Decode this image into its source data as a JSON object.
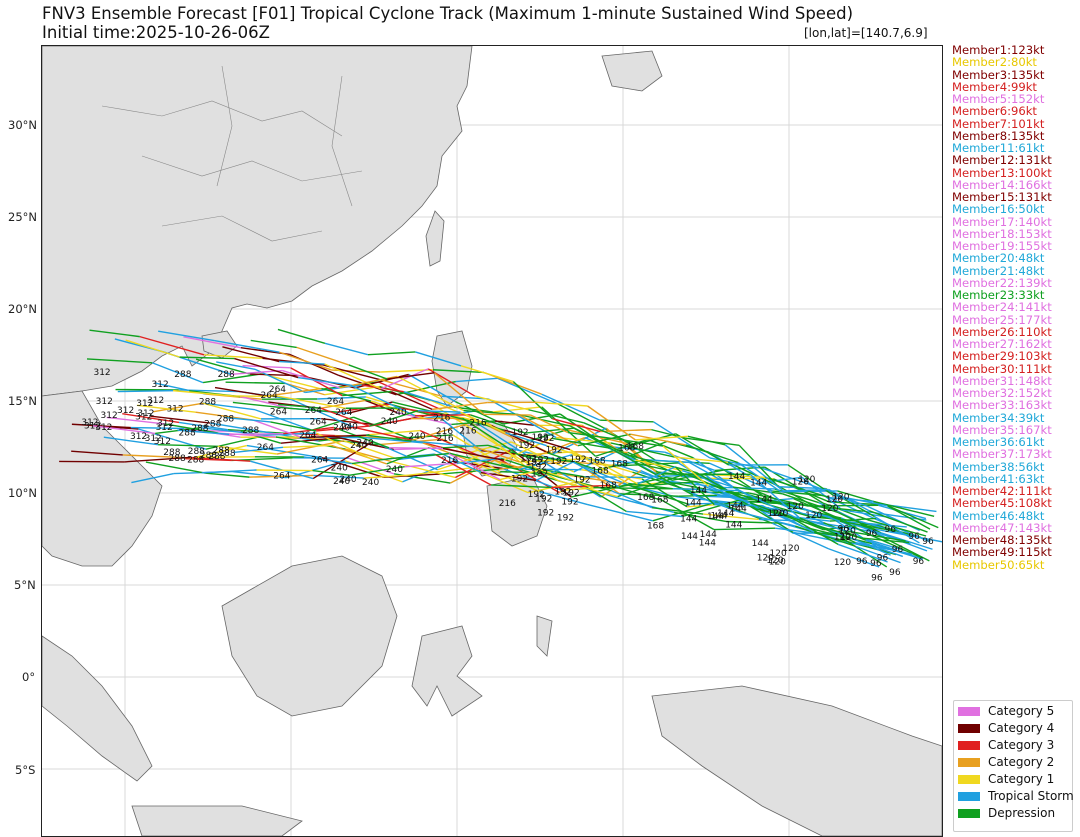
{
  "header": {
    "title": "FNV3 Ensemble Forecast [F01] Tropical Cyclone Track (Maximum 1-minute Sustained Wind Speed)",
    "initial_time": "Initial time:2025-10-26-06Z",
    "coord_readout": "[lon,lat]=[140.7,6.9]"
  },
  "map": {
    "lat_labels": [
      "30°N",
      "25°N",
      "20°N",
      "15°N",
      "10°N",
      "5°N",
      "0°",
      "5°S"
    ],
    "land_color": "#e0e0e0",
    "border_color": "#666666",
    "grid_color": "#d8d8d8"
  },
  "members": [
    {
      "label": "Member1:123kt",
      "color": "#800000"
    },
    {
      "label": "Member2:80kt",
      "color": "#e8c800"
    },
    {
      "label": "Member3:135kt",
      "color": "#800000"
    },
    {
      "label": "Member4:99kt",
      "color": "#d42020"
    },
    {
      "label": "Member5:152kt",
      "color": "#e070e0"
    },
    {
      "label": "Member6:96kt",
      "color": "#d42020"
    },
    {
      "label": "Member7:101kt",
      "color": "#d42020"
    },
    {
      "label": "Member8:135kt",
      "color": "#800000"
    },
    {
      "label": "Member11:61kt",
      "color": "#20a8d8"
    },
    {
      "label": "Member12:131kt",
      "color": "#800000"
    },
    {
      "label": "Member13:100kt",
      "color": "#d42020"
    },
    {
      "label": "Member14:166kt",
      "color": "#e070e0"
    },
    {
      "label": "Member15:131kt",
      "color": "#800000"
    },
    {
      "label": "Member16:50kt",
      "color": "#20a8d8"
    },
    {
      "label": "Member17:140kt",
      "color": "#e070e0"
    },
    {
      "label": "Member18:153kt",
      "color": "#e070e0"
    },
    {
      "label": "Member19:155kt",
      "color": "#e070e0"
    },
    {
      "label": "Member20:48kt",
      "color": "#20a8d8"
    },
    {
      "label": "Member21:48kt",
      "color": "#20a8d8"
    },
    {
      "label": "Member22:139kt",
      "color": "#e070e0"
    },
    {
      "label": "Member23:33kt",
      "color": "#10a020"
    },
    {
      "label": "Member24:141kt",
      "color": "#e070e0"
    },
    {
      "label": "Member25:177kt",
      "color": "#e070e0"
    },
    {
      "label": "Member26:110kt",
      "color": "#d42020"
    },
    {
      "label": "Member27:162kt",
      "color": "#e070e0"
    },
    {
      "label": "Member29:103kt",
      "color": "#d42020"
    },
    {
      "label": "Member30:111kt",
      "color": "#d42020"
    },
    {
      "label": "Member31:148kt",
      "color": "#e070e0"
    },
    {
      "label": "Member32:152kt",
      "color": "#e070e0"
    },
    {
      "label": "Member33:163kt",
      "color": "#e070e0"
    },
    {
      "label": "Member34:39kt",
      "color": "#20a8d8"
    },
    {
      "label": "Member35:167kt",
      "color": "#e070e0"
    },
    {
      "label": "Member36:61kt",
      "color": "#20a8d8"
    },
    {
      "label": "Member37:173kt",
      "color": "#e070e0"
    },
    {
      "label": "Member38:56kt",
      "color": "#20a8d8"
    },
    {
      "label": "Member41:63kt",
      "color": "#20a8d8"
    },
    {
      "label": "Member42:111kt",
      "color": "#d42020"
    },
    {
      "label": "Member45:108kt",
      "color": "#d42020"
    },
    {
      "label": "Member46:48kt",
      "color": "#20a8d8"
    },
    {
      "label": "Member47:143kt",
      "color": "#e070e0"
    },
    {
      "label": "Member48:135kt",
      "color": "#800000"
    },
    {
      "label": "Member49:115kt",
      "color": "#800000"
    },
    {
      "label": "Member50:65kt",
      "color": "#e8c800"
    }
  ],
  "categories": [
    {
      "label": "Category 5",
      "color": "#e070e0"
    },
    {
      "label": "Category 4",
      "color": "#700000"
    },
    {
      "label": "Category 3",
      "color": "#e02020"
    },
    {
      "label": "Category 2",
      "color": "#e8a020"
    },
    {
      "label": "Category 1",
      "color": "#f0d820"
    },
    {
      "label": "Tropical Storm",
      "color": "#20a0e0"
    },
    {
      "label": "Depression",
      "color": "#10a020"
    }
  ],
  "hour_labels": [
    "312",
    "288",
    "264",
    "240",
    "216",
    "192",
    "168",
    "144",
    "120",
    "96"
  ]
}
